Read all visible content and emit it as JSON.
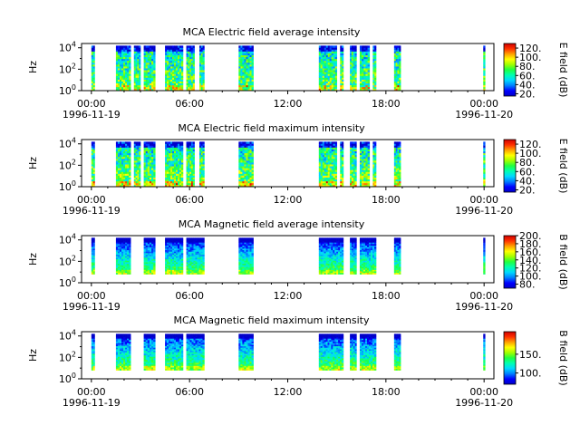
{
  "colors": {
    "colormap": [
      "#0000c8",
      "#0000ff",
      "#0080ff",
      "#00d8ff",
      "#00ffb0",
      "#20ff40",
      "#a0ff00",
      "#ffff00",
      "#ffa000",
      "#ff3000",
      "#d00000"
    ]
  },
  "chart_data": [
    {
      "type": "heatmap",
      "title": "MCA  Electric field average intensity",
      "ylabel": "Hz",
      "colorbar_label": "E field (dB)",
      "colorbar_range": [
        15,
        130
      ],
      "colorbar_ticks": [
        "20.",
        "40.",
        "60.",
        "80.",
        "100.",
        "120."
      ],
      "colorbar_tick_values": [
        20,
        40,
        60,
        80,
        100,
        120
      ],
      "ylim_exponent": [
        0,
        4.4
      ],
      "y_ticks": [
        {
          "base": "10",
          "exp": "0"
        },
        {
          "base": "10",
          "exp": "2"
        },
        {
          "base": "10",
          "exp": "4"
        }
      ],
      "y_tick_values": [
        0,
        2,
        4
      ],
      "x_ticks": [
        {
          "time": "00:00",
          "date": "1996-11-19"
        },
        {
          "time": "06:00",
          "date": ""
        },
        {
          "time": "12:00",
          "date": ""
        },
        {
          "time": "18:00",
          "date": ""
        },
        {
          "time": "00:00",
          "date": "1996-11-20"
        }
      ],
      "x_tick_values": [
        0,
        6,
        12,
        18,
        24
      ],
      "xlim_hours": [
        -0.6,
        24.6
      ],
      "y_data_range_exponent": [
        0,
        4.2
      ],
      "segments_hours": [
        [
          0,
          0.2
        ],
        [
          1.5,
          2.4
        ],
        [
          2.6,
          3.0
        ],
        [
          3.2,
          3.9
        ],
        [
          4.5,
          5.6
        ],
        [
          5.8,
          6.3
        ],
        [
          6.6,
          6.9
        ],
        [
          9.0,
          9.9
        ],
        [
          13.9,
          15.0
        ],
        [
          15.2,
          15.4
        ],
        [
          15.8,
          16.2
        ],
        [
          16.4,
          17.0
        ],
        [
          17.2,
          17.4
        ],
        [
          18.5,
          18.9
        ],
        [
          23.95,
          24.05
        ]
      ],
      "intensity_model": {
        "base": 75,
        "top": 55,
        "variability": 25
      }
    },
    {
      "type": "heatmap",
      "title": "MCA  Electric field maximum intensity",
      "ylabel": "Hz",
      "colorbar_label": "E field (dB)",
      "colorbar_range": [
        15,
        130
      ],
      "colorbar_ticks": [
        "20.",
        "40.",
        "60.",
        "80.",
        "100.",
        "120."
      ],
      "colorbar_tick_values": [
        20,
        40,
        60,
        80,
        100,
        120
      ],
      "ylim_exponent": [
        0,
        4.4
      ],
      "y_ticks": [
        {
          "base": "10",
          "exp": "0"
        },
        {
          "base": "10",
          "exp": "2"
        },
        {
          "base": "10",
          "exp": "4"
        }
      ],
      "y_tick_values": [
        0,
        2,
        4
      ],
      "x_ticks": [
        {
          "time": "00:00",
          "date": "1996-11-19"
        },
        {
          "time": "06:00",
          "date": ""
        },
        {
          "time": "12:00",
          "date": ""
        },
        {
          "time": "18:00",
          "date": ""
        },
        {
          "time": "00:00",
          "date": "1996-11-20"
        }
      ],
      "x_tick_values": [
        0,
        6,
        12,
        18,
        24
      ],
      "xlim_hours": [
        -0.6,
        24.6
      ],
      "y_data_range_exponent": [
        0,
        4.2
      ],
      "segments_hours": [
        [
          0,
          0.2
        ],
        [
          1.5,
          2.4
        ],
        [
          2.6,
          3.0
        ],
        [
          3.2,
          3.9
        ],
        [
          4.5,
          5.6
        ],
        [
          5.8,
          6.3
        ],
        [
          6.6,
          6.9
        ],
        [
          9.0,
          9.9
        ],
        [
          13.9,
          15.0
        ],
        [
          15.2,
          15.4
        ],
        [
          15.8,
          16.2
        ],
        [
          16.4,
          17.0
        ],
        [
          17.2,
          17.4
        ],
        [
          18.5,
          18.9
        ],
        [
          23.95,
          24.05
        ]
      ],
      "intensity_model": {
        "base": 80,
        "top": 55,
        "variability": 25
      }
    },
    {
      "type": "heatmap",
      "title": "MCA  Magnetic field average intensity",
      "ylabel": "Hz",
      "colorbar_label": "B field (dB)",
      "colorbar_range": [
        70,
        200
      ],
      "colorbar_ticks": [
        "80.",
        "100.",
        "120.",
        "140.",
        "160.",
        "180.",
        "200."
      ],
      "colorbar_tick_values": [
        80,
        100,
        120,
        140,
        160,
        180,
        200
      ],
      "ylim_exponent": [
        0,
        4.4
      ],
      "y_ticks": [
        {
          "base": "10",
          "exp": "0"
        },
        {
          "base": "10",
          "exp": "2"
        },
        {
          "base": "10",
          "exp": "4"
        }
      ],
      "y_tick_values": [
        0,
        2,
        4
      ],
      "x_ticks": [
        {
          "time": "00:00",
          "date": "1996-11-19"
        },
        {
          "time": "06:00",
          "date": ""
        },
        {
          "time": "12:00",
          "date": ""
        },
        {
          "time": "18:00",
          "date": ""
        },
        {
          "time": "00:00",
          "date": "1996-11-20"
        }
      ],
      "x_tick_values": [
        0,
        6,
        12,
        18,
        24
      ],
      "xlim_hours": [
        -0.6,
        24.6
      ],
      "y_data_range_exponent": [
        0.8,
        4.2
      ],
      "segments_hours": [
        [
          0,
          0.2
        ],
        [
          1.5,
          2.4
        ],
        [
          3.2,
          3.9
        ],
        [
          4.5,
          5.6
        ],
        [
          5.8,
          6.9
        ],
        [
          9.0,
          9.9
        ],
        [
          13.9,
          15.4
        ],
        [
          15.8,
          16.2
        ],
        [
          16.4,
          17.4
        ],
        [
          18.5,
          18.9
        ],
        [
          23.95,
          24.05
        ]
      ],
      "intensity_model": {
        "base": 140,
        "top": 80,
        "variability": 15
      }
    },
    {
      "type": "heatmap",
      "title": "MCA  Magnetic field maximum intensity",
      "ylabel": "Hz",
      "colorbar_label": "B field (dB)",
      "colorbar_range": [
        70,
        210
      ],
      "colorbar_ticks": [
        "100.",
        "150."
      ],
      "colorbar_tick_values": [
        100,
        150
      ],
      "ylim_exponent": [
        0,
        4.4
      ],
      "y_ticks": [
        {
          "base": "10",
          "exp": "0"
        },
        {
          "base": "10",
          "exp": "2"
        },
        {
          "base": "10",
          "exp": "4"
        }
      ],
      "y_tick_values": [
        0,
        2,
        4
      ],
      "x_ticks": [
        {
          "time": "00:00",
          "date": "1996-11-19"
        },
        {
          "time": "06:00",
          "date": ""
        },
        {
          "time": "12:00",
          "date": ""
        },
        {
          "time": "18:00",
          "date": ""
        },
        {
          "time": "00:00",
          "date": "1996-11-20"
        }
      ],
      "x_tick_values": [
        0,
        6,
        12,
        18,
        24
      ],
      "xlim_hours": [
        -0.6,
        24.6
      ],
      "y_data_range_exponent": [
        0.8,
        4.2
      ],
      "segments_hours": [
        [
          0,
          0.2
        ],
        [
          1.5,
          2.4
        ],
        [
          3.2,
          3.9
        ],
        [
          4.5,
          5.6
        ],
        [
          5.8,
          6.9
        ],
        [
          9.0,
          9.9
        ],
        [
          13.9,
          15.4
        ],
        [
          15.8,
          16.2
        ],
        [
          16.4,
          17.4
        ],
        [
          18.5,
          18.9
        ],
        [
          23.95,
          24.05
        ]
      ],
      "intensity_model": {
        "base": 145,
        "top": 85,
        "variability": 18
      }
    }
  ]
}
